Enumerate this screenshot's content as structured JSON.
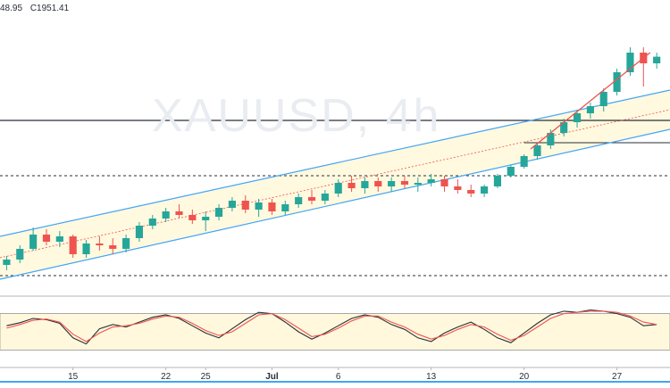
{
  "header": {
    "open_fragment": "48.95",
    "close_value": "C1951.41"
  },
  "watermark": "XAUUSD, 4h",
  "colors": {
    "up": "#26a69a",
    "down": "#ef5350",
    "channel_line": "#42a5f5",
    "channel_fill": "#fff8dc",
    "mid_line": "#ef5350",
    "horizontal_line": "#2a2e39",
    "stoch_k": "#2a2e39",
    "stoch_d": "#ef5350",
    "stoch_band_fill": "#fff8dc",
    "axis_text": "#2a2e39"
  },
  "chart_data": [
    {
      "type": "candlestick",
      "title": "",
      "x_tick_labels": [
        "15",
        "22",
        "25",
        "Jul",
        "6",
        "13",
        "20",
        "27"
      ],
      "x_tick_positions": [
        5,
        12,
        15,
        20,
        25,
        32,
        39,
        46
      ],
      "x_range": [
        -0.5,
        50
      ],
      "y_range": [
        1695,
        1995
      ],
      "grid": false,
      "series": [
        {
          "kind": "ohlc",
          "values": [
            [
              1718,
              1728,
              1712,
              1724
            ],
            [
              1724,
              1740,
              1720,
              1736
            ],
            [
              1736,
              1760,
              1734,
              1752
            ],
            [
              1752,
              1758,
              1740,
              1744
            ],
            [
              1744,
              1756,
              1738,
              1750
            ],
            [
              1750,
              1752,
              1726,
              1730
            ],
            [
              1730,
              1746,
              1726,
              1742
            ],
            [
              1742,
              1750,
              1734,
              1740
            ],
            [
              1740,
              1748,
              1730,
              1736
            ],
            [
              1736,
              1752,
              1732,
              1748
            ],
            [
              1748,
              1766,
              1744,
              1762
            ],
            [
              1762,
              1774,
              1758,
              1770
            ],
            [
              1770,
              1782,
              1766,
              1778
            ],
            [
              1778,
              1786,
              1770,
              1774
            ],
            [
              1774,
              1780,
              1764,
              1768
            ],
            [
              1768,
              1778,
              1756,
              1772
            ],
            [
              1772,
              1786,
              1768,
              1782
            ],
            [
              1782,
              1794,
              1778,
              1790
            ],
            [
              1790,
              1796,
              1776,
              1780
            ],
            [
              1780,
              1792,
              1772,
              1788
            ],
            [
              1788,
              1792,
              1774,
              1778
            ],
            [
              1778,
              1790,
              1774,
              1786
            ],
            [
              1786,
              1798,
              1782,
              1794
            ],
            [
              1794,
              1802,
              1786,
              1790
            ],
            [
              1790,
              1802,
              1786,
              1798
            ],
            [
              1798,
              1814,
              1794,
              1810
            ],
            [
              1810,
              1818,
              1800,
              1804
            ],
            [
              1804,
              1816,
              1798,
              1812
            ],
            [
              1812,
              1816,
              1800,
              1806
            ],
            [
              1806,
              1816,
              1800,
              1812
            ],
            [
              1812,
              1818,
              1804,
              1808
            ],
            [
              1808,
              1816,
              1800,
              1810
            ],
            [
              1810,
              1820,
              1806,
              1814
            ],
            [
              1814,
              1818,
              1800,
              1806
            ],
            [
              1806,
              1814,
              1798,
              1802
            ],
            [
              1802,
              1808,
              1794,
              1798
            ],
            [
              1798,
              1808,
              1794,
              1806
            ],
            [
              1806,
              1820,
              1804,
              1818
            ],
            [
              1818,
              1830,
              1816,
              1828
            ],
            [
              1828,
              1842,
              1826,
              1840
            ],
            [
              1840,
              1854,
              1836,
              1852
            ],
            [
              1852,
              1870,
              1848,
              1866
            ],
            [
              1866,
              1882,
              1862,
              1878
            ],
            [
              1878,
              1892,
              1872,
              1888
            ],
            [
              1888,
              1900,
              1882,
              1896
            ],
            [
              1896,
              1916,
              1890,
              1912
            ],
            [
              1912,
              1938,
              1908,
              1934
            ],
            [
              1934,
              1962,
              1930,
              1956
            ],
            [
              1956,
              1962,
              1918,
              1944
            ],
            [
              1944,
              1956,
              1938,
              1951.41
            ]
          ]
        }
      ],
      "horizontal_levels": [
        {
          "value": 1880,
          "style": "solid"
        },
        {
          "value": 1818,
          "style": "dashed"
        },
        {
          "value": 1706,
          "style": "dashed"
        }
      ],
      "channel": {
        "lower": [
          [
            -0.5,
            1702
          ],
          [
            50,
            1870
          ]
        ],
        "upper": [
          [
            -0.5,
            1750
          ],
          [
            50,
            1914
          ]
        ],
        "mid": [
          [
            -0.5,
            1726
          ],
          [
            50,
            1892
          ]
        ]
      },
      "trend_segments": [
        {
          "from": [
            39.5,
            1848
          ],
          "to": [
            48.5,
            1956
          ],
          "color": "#ef5350"
        }
      ],
      "short_levels": [
        {
          "value": 1855,
          "from": 39,
          "to": 50
        }
      ]
    },
    {
      "type": "line",
      "title": "",
      "y_range": [
        0,
        100
      ],
      "band": [
        20,
        80
      ],
      "series": [
        {
          "values": [
            60,
            65,
            72,
            70,
            64,
            40,
            30,
            55,
            62,
            58,
            66,
            74,
            78,
            72,
            60,
            48,
            40,
            55,
            70,
            82,
            80,
            66,
            50,
            38,
            48,
            60,
            72,
            78,
            74,
            62,
            54,
            40,
            34,
            48,
            58,
            66,
            54,
            40,
            32,
            48,
            64,
            78,
            84,
            82,
            86,
            84,
            80,
            74,
            60,
            62
          ]
        },
        {
          "values": [
            56,
            62,
            69,
            71,
            66,
            46,
            34,
            48,
            58,
            60,
            64,
            71,
            76,
            74,
            64,
            52,
            44,
            50,
            64,
            78,
            80,
            70,
            56,
            42,
            46,
            56,
            68,
            76,
            76,
            66,
            58,
            46,
            38,
            44,
            54,
            62,
            58,
            46,
            36,
            44,
            58,
            72,
            80,
            82,
            84,
            84,
            82,
            76,
            66,
            62
          ]
        }
      ]
    }
  ]
}
